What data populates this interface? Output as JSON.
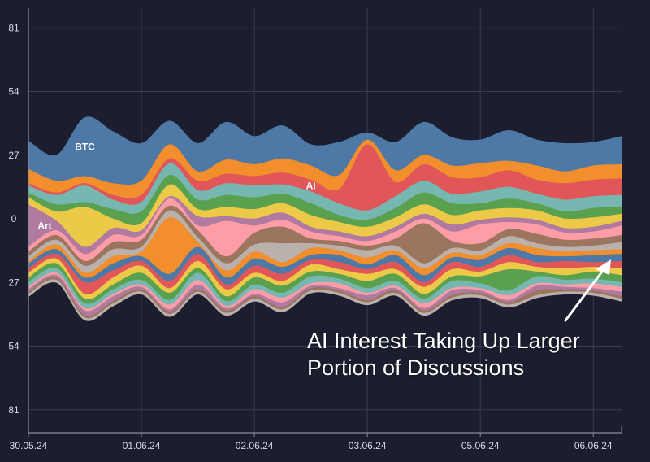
{
  "chart_data": {
    "type": "area",
    "subtype": "streamgraph",
    "grid": true,
    "y_tick_labels": [
      "81",
      "54",
      "27",
      "0",
      "27",
      "54",
      "81"
    ],
    "y_tick_values": [
      81,
      54,
      27,
      0,
      -27,
      -54,
      -81
    ],
    "ylim": [
      -90,
      90
    ],
    "x_tick_labels": [
      "30.05.24",
      "01.06.24",
      "02.06.24",
      "03.06.24",
      "05.06.24",
      "06.06.24"
    ],
    "x": [
      "30.05.24",
      "",
      "",
      "",
      "01.06.24",
      "",
      "",
      "",
      "02.06.24",
      "",
      "",
      "",
      "03.06.24",
      "",
      "",
      "",
      "05.06.24",
      "",
      "",
      "",
      "06.06.24",
      ""
    ],
    "series": [
      {
        "name": "BTC",
        "color": "#4e79a7",
        "values": [
          12,
          11,
          25,
          22,
          16,
          10,
          12,
          16,
          12,
          14,
          9,
          14,
          3,
          12,
          14,
          12,
          10,
          13,
          11,
          12,
          10,
          12
        ]
      },
      {
        "name": "",
        "color": "#f28e2b",
        "values": [
          6,
          5,
          3,
          5,
          6,
          6,
          4,
          6,
          5,
          6,
          6,
          6,
          2,
          5,
          4,
          5,
          6,
          4,
          6,
          5,
          6,
          6
        ]
      },
      {
        "name": "AI",
        "color": "#e15759",
        "values": [
          1,
          1,
          1,
          2,
          3,
          2,
          4,
          4,
          4,
          5,
          5,
          6,
          28,
          6,
          7,
          7,
          6,
          7,
          6,
          7,
          7,
          7
        ]
      },
      {
        "name": "",
        "color": "#76b7b2",
        "values": [
          3,
          4,
          7,
          4,
          4,
          5,
          4,
          5,
          5,
          4,
          5,
          5,
          4,
          5,
          5,
          4,
          5,
          5,
          4,
          5,
          5,
          5
        ]
      },
      {
        "name": "",
        "color": "#59a14f",
        "values": [
          2,
          3,
          2,
          4,
          5,
          4,
          4,
          5,
          5,
          4,
          5,
          3,
          3,
          4,
          5,
          5,
          3,
          4,
          3,
          3,
          4,
          3
        ]
      },
      {
        "name": "",
        "color": "#edc948",
        "values": [
          3,
          4,
          17,
          4,
          3,
          5,
          3,
          4,
          4,
          4,
          5,
          4,
          4,
          4,
          4,
          4,
          4,
          4,
          4,
          4,
          4,
          3
        ]
      },
      {
        "name": "Art",
        "color": "#b07aa1",
        "values": [
          18,
          4,
          3,
          3,
          2,
          1,
          4,
          2,
          3,
          3,
          2,
          2,
          2,
          2,
          2,
          3,
          2,
          2,
          2,
          2,
          2,
          2
        ]
      },
      {
        "name": "",
        "color": "#ff9da7",
        "values": [
          2,
          2,
          3,
          3,
          2,
          3,
          2,
          15,
          3,
          3,
          3,
          2,
          2,
          3,
          2,
          4,
          8,
          3,
          4,
          3,
          3,
          4
        ]
      },
      {
        "name": "",
        "color": "#9c755f",
        "values": [
          2,
          2,
          2,
          3,
          3,
          2,
          3,
          3,
          5,
          7,
          2,
          2,
          2,
          3,
          17,
          3,
          3,
          3,
          4,
          3,
          3,
          3
        ]
      },
      {
        "name": "",
        "color": "#bab0ac",
        "values": [
          2,
          2,
          3,
          3,
          2,
          3,
          2,
          3,
          3,
          8,
          2,
          2,
          3,
          2,
          2,
          2,
          2,
          3,
          2,
          2,
          2,
          3
        ]
      },
      {
        "name": "",
        "color": "#f28e2b",
        "values": [
          1,
          2,
          2,
          3,
          2,
          24,
          2,
          3,
          3,
          2,
          3,
          2,
          3,
          2,
          3,
          2,
          2,
          2,
          3,
          2,
          2,
          2
        ]
      },
      {
        "name": "",
        "color": "#4e79a7",
        "values": [
          2,
          2,
          2,
          3,
          2,
          3,
          3,
          3,
          3,
          3,
          2,
          3,
          2,
          3,
          3,
          2,
          3,
          3,
          3,
          2,
          3,
          3
        ]
      },
      {
        "name": "",
        "color": "#e15759",
        "values": [
          2,
          2,
          5,
          3,
          2,
          3,
          3,
          2,
          3,
          3,
          2,
          3,
          2,
          3,
          2,
          3,
          2,
          3,
          2,
          3,
          2,
          3
        ]
      },
      {
        "name": "",
        "color": "#edc948",
        "values": [
          2,
          2,
          2,
          3,
          3,
          2,
          3,
          3,
          2,
          2,
          3,
          2,
          3,
          2,
          3,
          3,
          2,
          3,
          2,
          3,
          2,
          3
        ]
      },
      {
        "name": "",
        "color": "#59a14f",
        "values": [
          2,
          2,
          2,
          2,
          3,
          3,
          2,
          2,
          3,
          3,
          2,
          2,
          3,
          3,
          2,
          2,
          3,
          9,
          2,
          2,
          3,
          3
        ]
      },
      {
        "name": "",
        "color": "#76b7b2",
        "values": [
          2,
          2,
          2,
          2,
          2,
          2,
          3,
          2,
          2,
          2,
          3,
          2,
          2,
          2,
          2,
          3,
          2,
          2,
          3,
          2,
          2,
          2
        ]
      },
      {
        "name": "",
        "color": "#ff9da7",
        "values": [
          1,
          1,
          1,
          1,
          1,
          2,
          2,
          1,
          2,
          2,
          1,
          2,
          1,
          1,
          2,
          1,
          1,
          2,
          1,
          1,
          2,
          2
        ]
      },
      {
        "name": "",
        "color": "#b07aa1",
        "values": [
          1,
          1,
          2,
          2,
          1,
          1,
          2,
          1,
          1,
          2,
          1,
          1,
          2,
          1,
          1,
          2,
          1,
          1,
          2,
          1,
          1,
          2
        ]
      },
      {
        "name": "",
        "color": "#9c755f",
        "values": [
          1,
          1,
          1,
          1,
          1,
          1,
          1,
          1,
          1,
          1,
          1,
          1,
          1,
          1,
          1,
          1,
          1,
          1,
          2,
          1,
          1,
          1
        ]
      },
      {
        "name": "",
        "color": "#bab0ac",
        "values": [
          1,
          1,
          1,
          1,
          1,
          1,
          1,
          1,
          1,
          1,
          1,
          1,
          1,
          1,
          1,
          1,
          1,
          1,
          1,
          1,
          1,
          1
        ]
      }
    ],
    "annotation": {
      "line1": "AI Interest Taking Up Larger",
      "line2": "Portion of Discussions"
    }
  }
}
